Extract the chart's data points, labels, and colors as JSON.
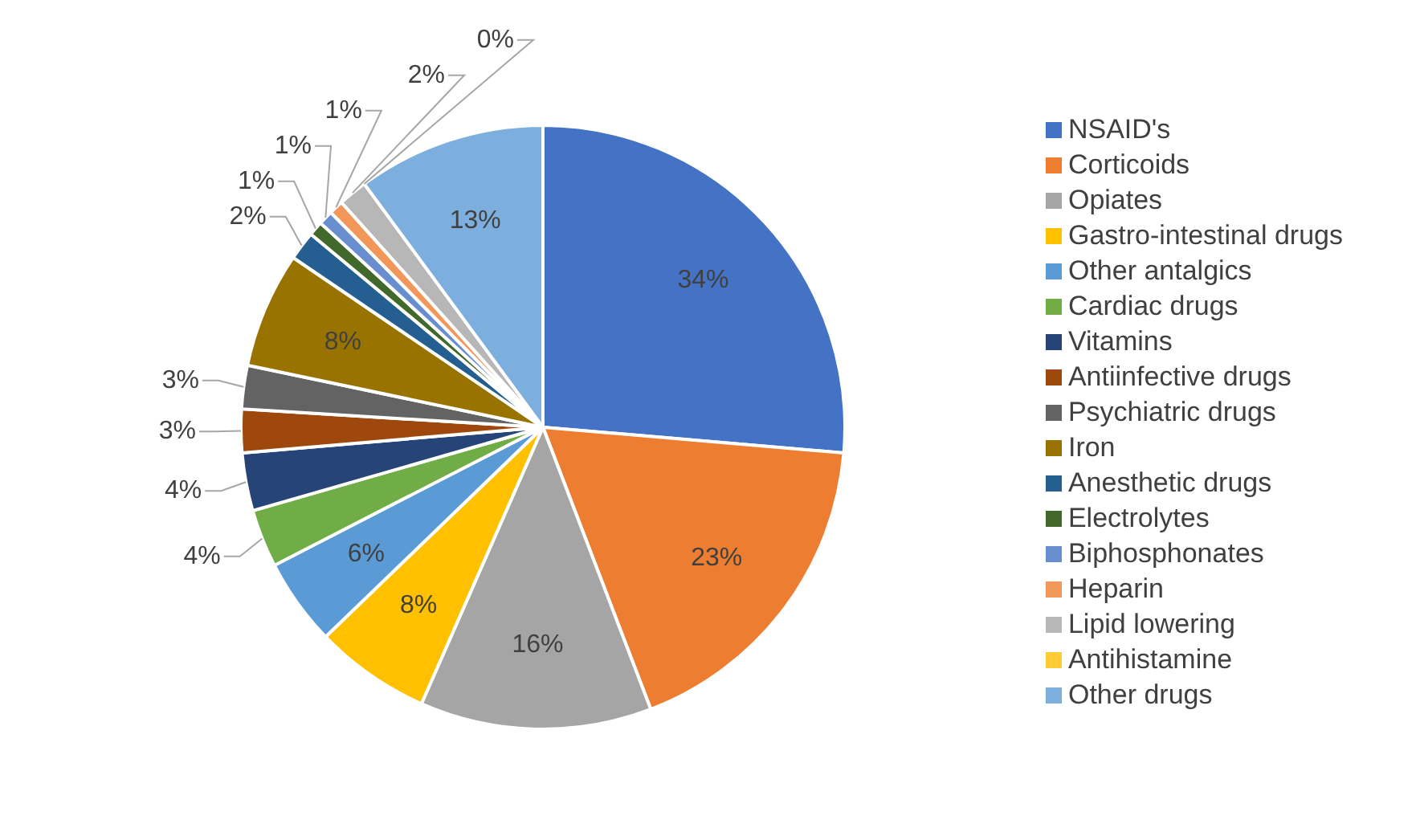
{
  "chart_data": {
    "type": "pie",
    "categories": [
      "NSAID's",
      "Corticoids",
      "Opiates",
      "Gastro-intestinal drugs",
      "Other antalgics",
      "Cardiac drugs",
      "Vitamins",
      "Antiinfective drugs",
      "Psychiatric drugs",
      "Iron",
      "Anesthetic drugs",
      "Electrolytes",
      "Biphosphonates",
      "Heparin",
      "Lipid lowering",
      "Antihistamine",
      "Other drugs"
    ],
    "values": [
      34,
      23,
      16,
      8,
      6,
      4,
      4,
      3,
      3,
      8,
      2,
      1,
      1,
      1,
      2,
      0,
      13
    ],
    "value_labels": [
      "34%",
      "23%",
      "16%",
      "8%",
      "6%",
      "4%",
      "4%",
      "3%",
      "3%",
      "8%",
      "2%",
      "1%",
      "1%",
      "1%",
      "2%",
      "0%",
      "13%"
    ],
    "colors": [
      "#4472c4",
      "#ed7d31",
      "#a5a5a5",
      "#ffc000",
      "#5b9bd5",
      "#70ad47",
      "#264478",
      "#9e480e",
      "#636363",
      "#997300",
      "#255e91",
      "#43682b",
      "#698ed0",
      "#f1975a",
      "#b7b7b7",
      "#ffcd33",
      "#7cafdd"
    ],
    "legend": "right"
  }
}
